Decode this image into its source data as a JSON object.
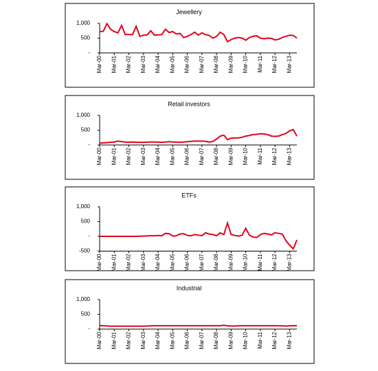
{
  "chart_data": [
    {
      "type": "line",
      "title": "Jewellery",
      "color": "#e3001b",
      "categories": [
        "Mar-00",
        null,
        null,
        null,
        "Mar-01",
        null,
        null,
        null,
        "Mar-02",
        null,
        null,
        null,
        "Mar-03",
        null,
        null,
        null,
        "Mar-04",
        null,
        null,
        null,
        "Mar-05",
        null,
        null,
        null,
        "Mar-06",
        null,
        null,
        null,
        "Mar-07",
        null,
        null,
        null,
        "Mar-08",
        null,
        null,
        null,
        "Mar-09",
        null,
        null,
        null,
        "Mar-10",
        null,
        null,
        null,
        "Mar-11",
        null,
        null,
        null,
        "Mar-12",
        null,
        null,
        null,
        "Mar-13",
        null,
        null
      ],
      "values": [
        720,
        730,
        990,
        800,
        720,
        680,
        930,
        620,
        620,
        620,
        900,
        560,
        600,
        610,
        750,
        600,
        610,
        620,
        800,
        690,
        720,
        640,
        660,
        520,
        560,
        620,
        700,
        600,
        680,
        620,
        590,
        500,
        560,
        700,
        620,
        380,
        450,
        500,
        520,
        500,
        430,
        520,
        560,
        580,
        500,
        480,
        500,
        490,
        440,
        460,
        520,
        560,
        600,
        590,
        500
      ],
      "ylim": [
        0,
        1000
      ],
      "yticks": [
        {
          "value": 0,
          "label": "-"
        },
        500,
        {
          "value": 1000,
          "label": "1,000"
        }
      ]
    },
    {
      "type": "line",
      "title": "Retail investors",
      "color": "#e3001b",
      "categories": [
        "Mar-00",
        null,
        null,
        null,
        "Mar-01",
        null,
        null,
        null,
        "Mar-02",
        null,
        null,
        null,
        "Mar-03",
        null,
        null,
        null,
        "Mar-04",
        null,
        null,
        null,
        "Mar-05",
        null,
        null,
        null,
        "Mar-06",
        null,
        null,
        null,
        "Mar-07",
        null,
        null,
        null,
        "Mar-08",
        null,
        null,
        null,
        "Mar-09",
        null,
        null,
        null,
        "Mar-10",
        null,
        null,
        null,
        "Mar-11",
        null,
        null,
        null,
        "Mar-12",
        null,
        null,
        null,
        "Mar-13",
        null,
        null
      ],
      "values": [
        60,
        70,
        80,
        90,
        100,
        130,
        110,
        100,
        95,
        100,
        90,
        90,
        85,
        95,
        100,
        100,
        95,
        90,
        100,
        110,
        100,
        100,
        90,
        100,
        110,
        120,
        130,
        130,
        130,
        120,
        100,
        120,
        200,
        300,
        330,
        180,
        230,
        240,
        240,
        260,
        300,
        320,
        350,
        360,
        380,
        370,
        350,
        300,
        290,
        300,
        350,
        390,
        480,
        520,
        300
      ],
      "ylim": [
        0,
        1000
      ],
      "yticks": [
        {
          "value": 0,
          "label": "-"
        },
        500,
        {
          "value": 1000,
          "label": "1,000"
        }
      ]
    },
    {
      "type": "line",
      "title": "ETFs",
      "color": "#e3001b",
      "categories": [
        "Mar-00",
        null,
        null,
        null,
        "Mar-01",
        null,
        null,
        null,
        "Mar-02",
        null,
        null,
        null,
        "Mar-03",
        null,
        null,
        null,
        "Mar-04",
        null,
        null,
        null,
        "Mar-05",
        null,
        null,
        null,
        "Mar-06",
        null,
        null,
        null,
        "Mar-07",
        null,
        null,
        null,
        "Mar-08",
        null,
        null,
        null,
        "Mar-09",
        null,
        null,
        null,
        "Mar-10",
        null,
        null,
        null,
        "Mar-11",
        null,
        null,
        null,
        "Mar-12",
        null,
        null,
        null,
        "Mar-13",
        null,
        null
      ],
      "values": [
        0,
        0,
        0,
        0,
        0,
        0,
        0,
        0,
        0,
        0,
        0,
        5,
        10,
        15,
        20,
        20,
        30,
        20,
        100,
        90,
        10,
        20,
        80,
        90,
        30,
        20,
        60,
        40,
        20,
        120,
        80,
        60,
        20,
        120,
        60,
        450,
        60,
        30,
        10,
        40,
        270,
        40,
        -20,
        -40,
        60,
        100,
        80,
        50,
        120,
        100,
        80,
        -150,
        -300,
        -420,
        -120
      ],
      "ylim": [
        -500,
        1000
      ],
      "yticks": [
        -500,
        {
          "value": 0,
          "label": "-"
        },
        500,
        {
          "value": 1000,
          "label": "1,000"
        }
      ]
    },
    {
      "type": "line",
      "title": "Industrial",
      "color": "#e3001b",
      "categories": [
        "Mar-00",
        null,
        null,
        null,
        "Mar-01",
        null,
        null,
        null,
        "Mar-02",
        null,
        null,
        null,
        "Mar-03",
        null,
        null,
        null,
        "Mar-04",
        null,
        null,
        null,
        "Mar-05",
        null,
        null,
        null,
        "Mar-06",
        null,
        null,
        null,
        "Mar-07",
        null,
        null,
        null,
        "Mar-08",
        null,
        null,
        null,
        "Mar-09",
        null,
        null,
        null,
        "Mar-10",
        null,
        null,
        null,
        "Mar-11",
        null,
        null,
        null,
        "Mar-12",
        null,
        null,
        null,
        "Mar-13",
        null,
        null
      ],
      "values": [
        120,
        115,
        105,
        100,
        100,
        100,
        100,
        100,
        100,
        100,
        100,
        100,
        100,
        105,
        110,
        115,
        115,
        115,
        115,
        115,
        115,
        115,
        115,
        115,
        115,
        115,
        115,
        115,
        115,
        115,
        115,
        115,
        115,
        115,
        130,
        110,
        105,
        105,
        110,
        115,
        115,
        115,
        115,
        115,
        115,
        115,
        115,
        115,
        115,
        110,
        110,
        105,
        110,
        115,
        115
      ],
      "ylim": [
        0,
        1000
      ],
      "yticks": [
        {
          "value": 0,
          "label": "-"
        },
        500,
        {
          "value": 1000,
          "label": "1,000"
        }
      ]
    }
  ]
}
